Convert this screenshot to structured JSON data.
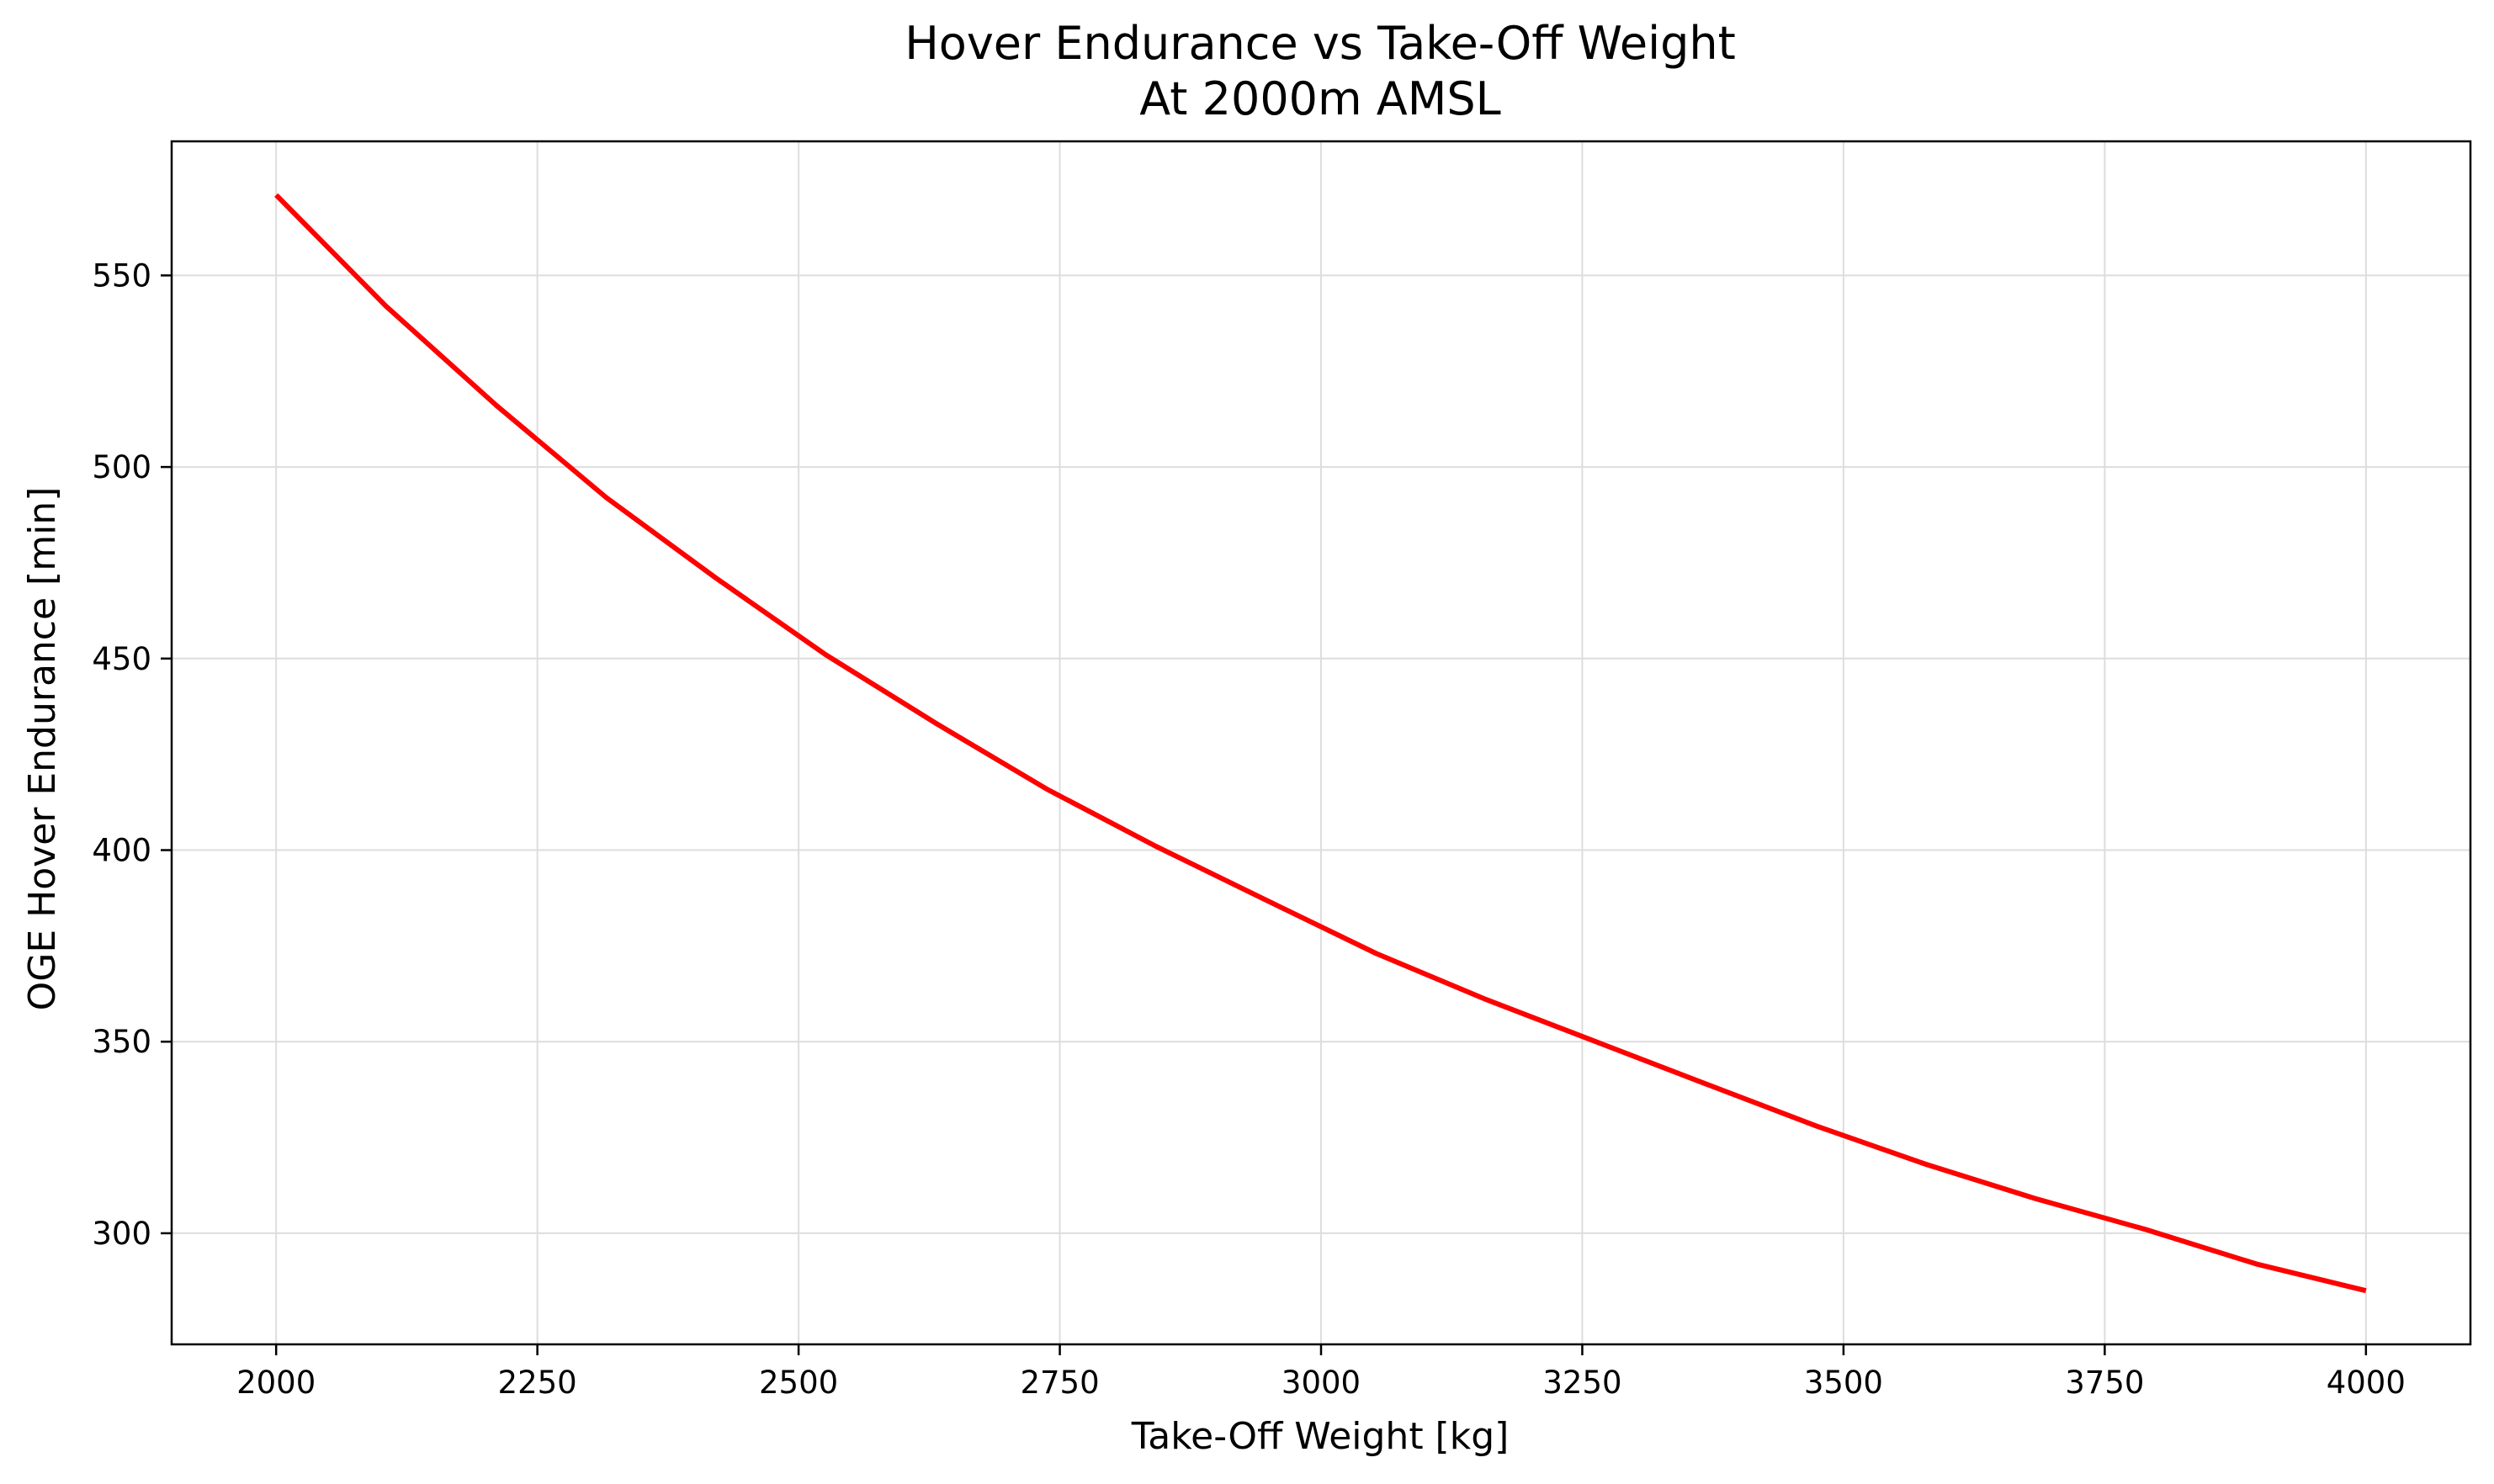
{
  "chart_data": {
    "type": "line",
    "title": "Hover Endurance vs Take-Off Weight",
    "subtitle": "At 2000m AMSL",
    "xlabel": "Take-Off Weight [kg]",
    "ylabel": "OGE Hover Endurance [min]",
    "xlim": [
      1900,
      4100
    ],
    "ylim": [
      271,
      585
    ],
    "xticks": [
      2000,
      2250,
      2500,
      2750,
      3000,
      3250,
      3500,
      3750,
      4000
    ],
    "yticks": [
      300,
      350,
      400,
      450,
      500,
      550
    ],
    "grid": true,
    "colors": {
      "line": "#ff0000",
      "grid": "#dddddd",
      "axes": "#000000"
    },
    "series": [
      {
        "x": [
          2000,
          2105,
          2211,
          2316,
          2421,
          2526,
          2632,
          2737,
          2842,
          2947,
          3053,
          3158,
          3263,
          3368,
          3474,
          3579,
          3684,
          3789,
          3895,
          4000
        ],
        "values": [
          571,
          542,
          516,
          492,
          471,
          451,
          433,
          416,
          401,
          387,
          373,
          361,
          350,
          339,
          328,
          318,
          309,
          301,
          292,
          285
        ]
      }
    ]
  }
}
